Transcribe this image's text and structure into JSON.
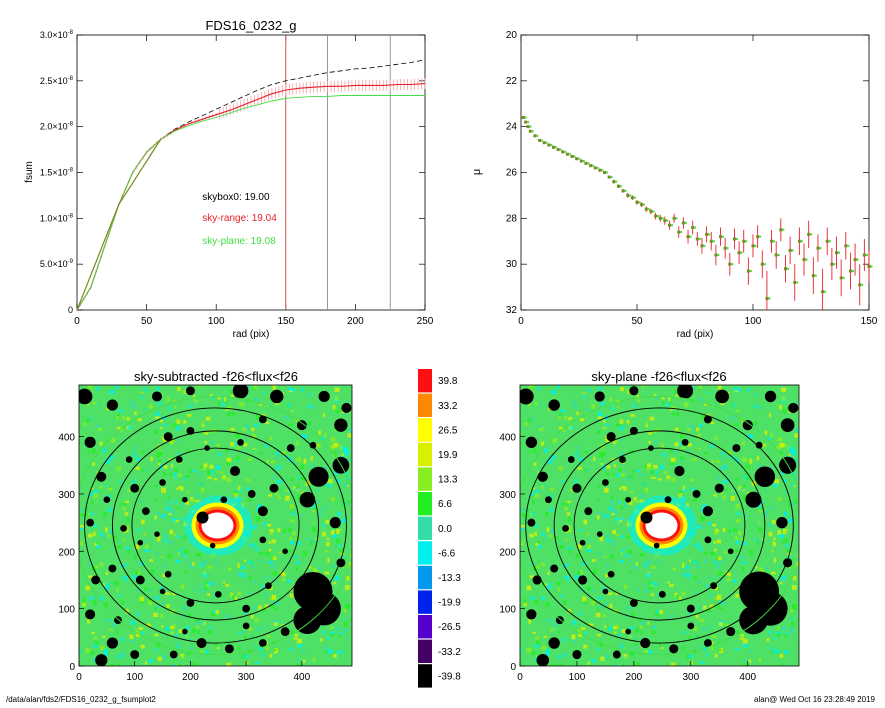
{
  "footer": {
    "left": "/data/alan/fds2/FDS16_0232_g_fsumplot2",
    "right": "alan@  Wed Oct 16 23:28:49 2019"
  },
  "colors": {
    "black": "#000000",
    "red": "#e8202a",
    "green": "#44dd44",
    "pink": "#f8b8b8",
    "gray": "#808080",
    "olive": "#7a8a20"
  },
  "chart_data": [
    {
      "type": "line",
      "title": "FDS16_0232_g",
      "xlabel": "rad (pix)",
      "ylabel": "fsum",
      "xlim": [
        0,
        250
      ],
      "ylim": [
        0,
        3e-08
      ],
      "xticks": [
        0,
        50,
        100,
        150,
        200,
        250
      ],
      "yticks": [
        {
          "v": 0,
          "m": "0",
          "e": ""
        },
        {
          "v": 5e-09,
          "m": "5.0×10",
          "e": "-9"
        },
        {
          "v": 1e-08,
          "m": "1.0×10",
          "e": "-8"
        },
        {
          "v": 1.5e-08,
          "m": "1.5×10",
          "e": "-8"
        },
        {
          "v": 2e-08,
          "m": "2.0×10",
          "e": "-8"
        },
        {
          "v": 2.5e-08,
          "m": "2.5×10",
          "e": "-8"
        },
        {
          "v": 3e-08,
          "m": "3.0×10",
          "e": "-8"
        }
      ],
      "annotations": [
        {
          "text": "skybox0: 19.00",
          "color": "#000000",
          "x": 90,
          "y": 1.2e-08
        },
        {
          "text": "sky-range: 19.04",
          "color": "#e8202a",
          "x": 90,
          "y": 9.7e-09
        },
        {
          "text": "sky-plane: 19.08",
          "color": "#44dd44",
          "x": 90,
          "y": 7.2e-09
        }
      ],
      "vlines": [
        {
          "x": 150,
          "color": "#c03030"
        },
        {
          "x": 180,
          "color": "#808080"
        },
        {
          "x": 225,
          "color": "#808080"
        }
      ],
      "series": [
        {
          "style": "dashed",
          "color": "#000000",
          "x": [
            0,
            10,
            20,
            30,
            40,
            50,
            60,
            70,
            80,
            90,
            100,
            110,
            120,
            130,
            140,
            150,
            160,
            170,
            180,
            190,
            200,
            210,
            220,
            230,
            240,
            250
          ],
          "y": [
            0,
            2.5e-09,
            7e-09,
            1.15e-08,
            1.5e-08,
            1.72e-08,
            1.86e-08,
            1.97e-08,
            2.05e-08,
            2.12e-08,
            2.19e-08,
            2.26e-08,
            2.33e-08,
            2.4e-08,
            2.46e-08,
            2.5e-08,
            2.53e-08,
            2.56e-08,
            2.59e-08,
            2.61e-08,
            2.63e-08,
            2.64e-08,
            2.66e-08,
            2.68e-08,
            2.7e-08,
            2.73e-08
          ]
        },
        {
          "style": "errorbars",
          "color": "#e8202a",
          "x": [
            0,
            10,
            20,
            30,
            40,
            50,
            60,
            70,
            80,
            90,
            100,
            110,
            120,
            130,
            140,
            150,
            160,
            170,
            180,
            190,
            200,
            210,
            220,
            230,
            240,
            250
          ],
          "y": [
            0,
            2.5e-09,
            7e-09,
            1.15e-08,
            1.5e-08,
            1.72e-08,
            1.86e-08,
            1.96e-08,
            2.03e-08,
            2.08e-08,
            2.13e-08,
            2.18e-08,
            2.24e-08,
            2.3e-08,
            2.36e-08,
            2.4e-08,
            2.42e-08,
            2.43e-08,
            2.44e-08,
            2.44e-08,
            2.45e-08,
            2.45e-08,
            2.45e-08,
            2.46e-08,
            2.46e-08,
            2.47e-08
          ]
        },
        {
          "style": "solid",
          "color": "#44dd44",
          "x": [
            0,
            10,
            20,
            30,
            40,
            50,
            60,
            70,
            80,
            90,
            100,
            110,
            120,
            130,
            140,
            150,
            160,
            170,
            180,
            190,
            200,
            210,
            220,
            230,
            240,
            250
          ],
          "y": [
            0,
            2.5e-09,
            7e-09,
            1.15e-08,
            1.5e-08,
            1.72e-08,
            1.86e-08,
            1.95e-08,
            2.01e-08,
            2.06e-08,
            2.1e-08,
            2.15e-08,
            2.2e-08,
            2.24e-08,
            2.28e-08,
            2.31e-08,
            2.32e-08,
            2.33e-08,
            2.33e-08,
            2.34e-08,
            2.34e-08,
            2.34e-08,
            2.34e-08,
            2.34e-08,
            2.34e-08,
            2.34e-08
          ]
        }
      ]
    },
    {
      "type": "scatter",
      "xlabel": "rad (pix)",
      "ylabel": "μ",
      "xlim": [
        0,
        150
      ],
      "ylim": [
        32,
        20
      ],
      "xticks": [
        0,
        50,
        100,
        150
      ],
      "yticks": [
        20,
        22,
        24,
        26,
        28,
        30,
        32
      ],
      "points": {
        "x": [
          1,
          2,
          3,
          4,
          6,
          8,
          10,
          12,
          14,
          16,
          18,
          20,
          22,
          24,
          26,
          28,
          30,
          32,
          34,
          36,
          38,
          40,
          42,
          44,
          46,
          48,
          50,
          52,
          54,
          56,
          58,
          60,
          62,
          64,
          66,
          68,
          70,
          72,
          74,
          76,
          78,
          80,
          82,
          84,
          86,
          88,
          90,
          92,
          94,
          96,
          98,
          100,
          102,
          104,
          106,
          108,
          110,
          112,
          114,
          116,
          118,
          120,
          122,
          124,
          126,
          128,
          130,
          132,
          134,
          136,
          138,
          140,
          142,
          144,
          146,
          148,
          150
        ],
        "y": [
          23.6,
          23.8,
          24.0,
          24.2,
          24.4,
          24.6,
          24.7,
          24.8,
          24.9,
          25.0,
          25.1,
          25.2,
          25.3,
          25.4,
          25.5,
          25.6,
          25.7,
          25.8,
          25.9,
          26.0,
          26.2,
          26.4,
          26.6,
          26.8,
          27.0,
          27.1,
          27.3,
          27.4,
          27.6,
          27.7,
          27.9,
          28.0,
          28.1,
          28.3,
          28.0,
          28.6,
          28.2,
          28.8,
          28.4,
          28.9,
          29.2,
          28.7,
          29.0,
          29.6,
          28.8,
          29.3,
          30.0,
          28.9,
          29.5,
          29.0,
          30.3,
          29.2,
          28.8,
          30.0,
          31.5,
          29.0,
          29.6,
          28.5,
          30.2,
          29.4,
          30.8,
          29.0,
          29.8,
          28.7,
          30.5,
          29.3,
          31.2,
          29.0,
          30.0,
          29.5,
          30.6,
          29.2,
          30.3,
          29.8,
          30.9,
          29.6,
          30.1
        ],
        "err": [
          0.05,
          0.05,
          0.05,
          0.05,
          0.05,
          0.05,
          0.05,
          0.05,
          0.05,
          0.05,
          0.05,
          0.05,
          0.05,
          0.05,
          0.05,
          0.05,
          0.05,
          0.05,
          0.05,
          0.05,
          0.05,
          0.08,
          0.08,
          0.08,
          0.1,
          0.1,
          0.1,
          0.1,
          0.12,
          0.12,
          0.15,
          0.15,
          0.18,
          0.2,
          0.2,
          0.25,
          0.25,
          0.3,
          0.3,
          0.3,
          0.35,
          0.35,
          0.4,
          0.45,
          0.4,
          0.45,
          0.5,
          0.45,
          0.5,
          0.5,
          0.6,
          0.5,
          0.5,
          0.6,
          1.2,
          0.5,
          0.6,
          0.5,
          0.6,
          0.6,
          0.8,
          0.6,
          0.7,
          0.6,
          0.8,
          0.6,
          1.0,
          0.6,
          0.7,
          0.7,
          0.8,
          0.6,
          0.8,
          0.7,
          0.9,
          0.7,
          0.7
        ]
      }
    },
    {
      "type": "heatmap",
      "title": "sky-subtracted -f26<flux<f26",
      "xlim": [
        0,
        490
      ],
      "ylim": [
        0,
        490
      ],
      "xticks": [
        0,
        100,
        200,
        300,
        400
      ],
      "yticks": [
        0,
        100,
        200,
        300,
        400
      ],
      "center": [
        245,
        245
      ],
      "ellipses": [
        {
          "rx": 235,
          "ry": 205,
          "color": "#000000"
        },
        {
          "rx": 185,
          "ry": 165,
          "color": "#000000"
        },
        {
          "rx": 150,
          "ry": 135,
          "color": "#000000"
        },
        {
          "rx": 255,
          "ry": 225,
          "color": "#44dd44"
        }
      ]
    },
    {
      "type": "heatmap",
      "title": "sky-plane -f26<flux<f26",
      "xlim": [
        0,
        490
      ],
      "ylim": [
        0,
        490
      ],
      "xticks": [
        0,
        100,
        200,
        300,
        400
      ],
      "yticks": [
        0,
        100,
        200,
        300,
        400
      ],
      "center": [
        245,
        245
      ],
      "ellipses": [
        {
          "rx": 235,
          "ry": 205,
          "color": "#000000"
        },
        {
          "rx": 185,
          "ry": 165,
          "color": "#000000"
        },
        {
          "rx": 150,
          "ry": 135,
          "color": "#000000"
        },
        {
          "rx": 255,
          "ry": 225,
          "color": "#44dd44"
        }
      ]
    }
  ],
  "colorbar": {
    "labels": [
      "39.8",
      "33.2",
      "26.5",
      "19.9",
      "13.3",
      "6.6",
      "0.0",
      "-6.6",
      "-13.3",
      "-19.9",
      "-26.5",
      "-33.2",
      "-39.8"
    ],
    "colors": [
      "#ff1010",
      "#ff8800",
      "#ffff00",
      "#d8f000",
      "#88ee22",
      "#22ee22",
      "#33ddaa",
      "#00f0f0",
      "#0099ee",
      "#0022ee",
      "#5500cc",
      "#440066",
      "#000000"
    ]
  }
}
